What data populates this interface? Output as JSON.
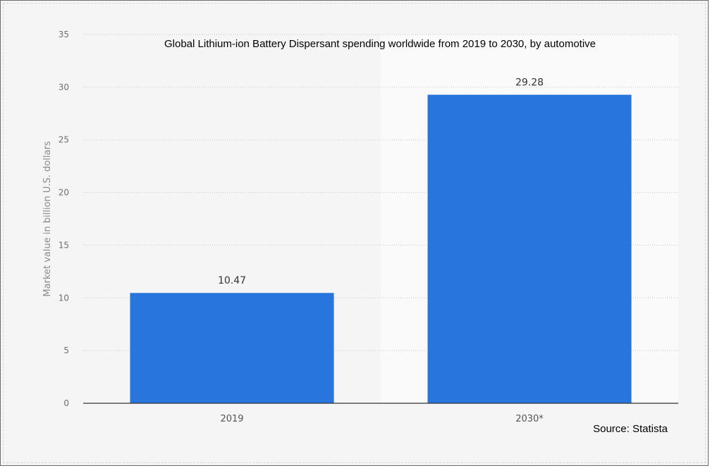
{
  "chart_data": {
    "type": "bar",
    "title": "Global Lithium-ion Battery Dispersant spending worldwide from 2019 to 2030, by automotive",
    "categories": [
      "2019",
      "2030*"
    ],
    "values": [
      10.47,
      29.28
    ],
    "data_labels": [
      "10.47",
      "29.28"
    ],
    "xlabel": "",
    "ylabel": "Market value in billion U.S. dollars",
    "ylim": [
      0,
      35
    ],
    "yticks": [
      0,
      5,
      10,
      15,
      20,
      25,
      30,
      35
    ],
    "grid": true,
    "bar_color": "#2876dd",
    "source": "Source: Statista"
  }
}
